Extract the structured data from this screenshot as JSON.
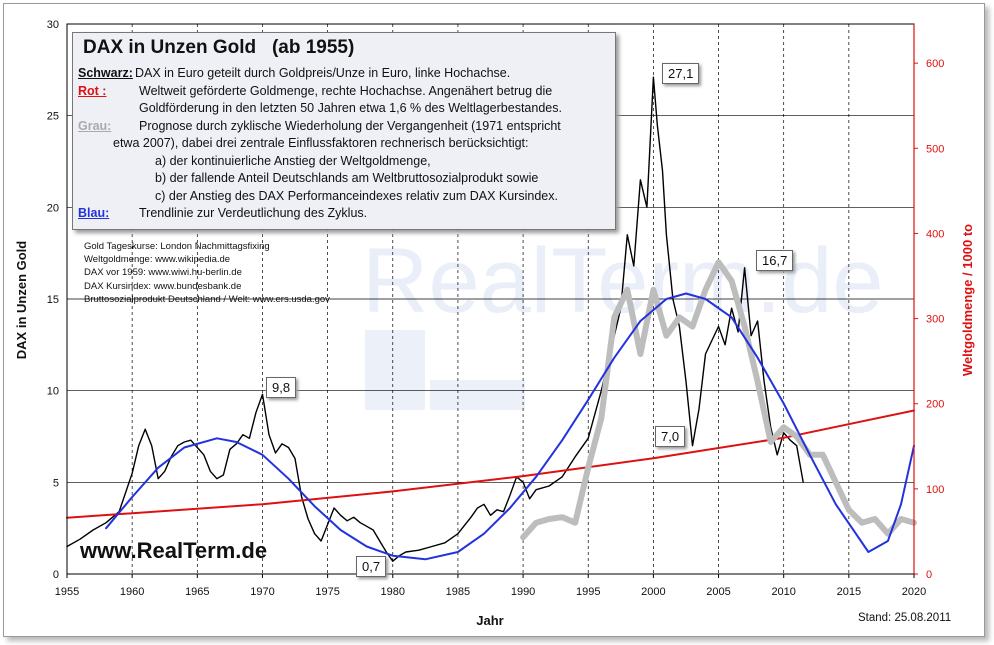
{
  "chart_data": {
    "type": "line",
    "title": "DAX in Unzen Gold   (ab 1955)",
    "xlabel": "Jahr",
    "ylabel": "DAX in Unzen Gold",
    "y2label": "Weltgoldmenge / 1000 to",
    "xlim": [
      1955,
      2020
    ],
    "ylim": [
      0,
      30
    ],
    "y2lim": [
      0,
      646
    ],
    "x_ticks": [
      "1955",
      "1960",
      "1965",
      "1970",
      "1975",
      "1980",
      "1985",
      "1990",
      "1995",
      "2000",
      "2005",
      "2010",
      "2015",
      "2020"
    ],
    "y_ticks": [
      "0",
      "5",
      "10",
      "15",
      "20",
      "25",
      "30"
    ],
    "y2_ticks": [
      "0",
      "100",
      "200",
      "300",
      "400",
      "500",
      "600"
    ],
    "grid": "horizontal gridlines; dashed vertical lines every 5 years",
    "legend": "text box top-left",
    "colors": {
      "black": "#000000",
      "red": "#dd1111",
      "grey": "#bdbdbd",
      "blue": "#2233dd"
    },
    "series": [
      {
        "name": "Schwarz",
        "color": "#000000",
        "x": [
          1955,
          1956,
          1957,
          1958,
          1959,
          1960,
          1960.5,
          1961,
          1961.5,
          1962,
          1962.5,
          1963,
          1963.5,
          1964,
          1964.5,
          1965,
          1965.5,
          1966,
          1966.5,
          1967,
          1967.5,
          1968,
          1968.5,
          1969,
          1969.5,
          1970,
          1970.5,
          1971,
          1971.5,
          1972,
          1972.5,
          1973,
          1973.5,
          1974,
          1974.5,
          1975,
          1975.5,
          1976,
          1976.5,
          1977,
          1977.5,
          1978,
          1978.5,
          1979,
          1979.5,
          1980,
          1980.5,
          1981,
          1982,
          1983,
          1984,
          1985,
          1986,
          1986.5,
          1987,
          1987.5,
          1988,
          1988.5,
          1989,
          1989.5,
          1990,
          1990.5,
          1991,
          1992,
          1993,
          1994,
          1995,
          1996,
          1997,
          1997.5,
          1998,
          1998.5,
          1999,
          1999.5,
          2000,
          2000.3,
          2000.7,
          2001,
          2001.5,
          2002,
          2002.5,
          2003,
          2003.5,
          2004,
          2005,
          2005.5,
          2006,
          2006.5,
          2007,
          2007.5,
          2008,
          2008.5,
          2009,
          2009.5,
          2010,
          2010.5,
          2011,
          2011.5
        ],
        "y": [
          1.5,
          1.9,
          2.4,
          2.8,
          3.4,
          5.5,
          7.0,
          7.9,
          7.0,
          5.2,
          5.6,
          6.4,
          7.0,
          7.2,
          7.3,
          6.9,
          6.5,
          5.6,
          5.2,
          5.4,
          6.8,
          7.1,
          7.6,
          7.4,
          8.8,
          9.8,
          7.6,
          6.6,
          7.1,
          6.9,
          6.3,
          4.2,
          3.0,
          2.2,
          1.8,
          2.7,
          3.6,
          3.2,
          2.9,
          3.1,
          2.8,
          2.6,
          2.4,
          1.8,
          1.2,
          0.7,
          1.0,
          1.2,
          1.3,
          1.5,
          1.7,
          2.2,
          3.1,
          3.6,
          3.8,
          3.2,
          3.5,
          3.4,
          4.3,
          5.3,
          5.0,
          4.1,
          4.6,
          4.8,
          5.3,
          6.4,
          7.4,
          10.0,
          13.0,
          14.5,
          18.5,
          16.8,
          21.5,
          20.0,
          27.1,
          24.5,
          22.0,
          18.5,
          15.0,
          13.5,
          10.5,
          7.0,
          9.0,
          12.0,
          13.5,
          12.5,
          14.5,
          13.2,
          16.7,
          13.0,
          13.8,
          10.5,
          8.0,
          6.5,
          7.7,
          7.3,
          7.0,
          5.0
        ]
      },
      {
        "name": "Rot",
        "color": "#dd1111",
        "axis": "right",
        "x": [
          1955,
          1970,
          1980,
          1990,
          2000,
          2010,
          2020
        ],
        "y": [
          66,
          82,
          97,
          115,
          136,
          160,
          192
        ]
      },
      {
        "name": "Grau",
        "color": "#bdbdbd",
        "x": [
          1990,
          1991,
          1992,
          1993,
          1994,
          1995,
          1996,
          1997,
          1998,
          1999,
          2000,
          2001,
          2002,
          2003,
          2004,
          2005,
          2006,
          2007,
          2008,
          2009,
          2010,
          2011,
          2012,
          2013,
          2014,
          2015,
          2016,
          2017,
          2018,
          2019,
          2020
        ],
        "y": [
          2.0,
          2.8,
          3.0,
          3.1,
          2.8,
          5.8,
          8.5,
          14.0,
          15.5,
          12.0,
          15.5,
          13.0,
          14.0,
          13.5,
          15.5,
          17.0,
          16.0,
          13.5,
          10.5,
          7.2,
          8.0,
          7.5,
          6.5,
          6.5,
          5.0,
          3.5,
          2.8,
          3.0,
          2.2,
          3.0,
          2.8
        ]
      },
      {
        "name": "Blau",
        "color": "#2233dd",
        "x": [
          1958,
          1960,
          1962,
          1964,
          1966.5,
          1968,
          1970,
          1972,
          1974,
          1976,
          1978,
          1980,
          1982.5,
          1985,
          1987,
          1989,
          1991,
          1993,
          1995,
          1997,
          1999,
          2001,
          2002.5,
          2004,
          2006,
          2008,
          2010,
          2012,
          2014,
          2016.5,
          2018,
          2019,
          2020
        ],
        "y": [
          2.5,
          4.2,
          5.8,
          6.9,
          7.4,
          7.2,
          6.5,
          5.2,
          3.7,
          2.4,
          1.5,
          1.0,
          0.8,
          1.2,
          2.2,
          3.6,
          5.3,
          7.3,
          9.5,
          11.8,
          13.8,
          15.0,
          15.3,
          15.0,
          14.0,
          11.8,
          9.3,
          6.5,
          3.8,
          1.2,
          1.8,
          3.8,
          7.0
        ]
      }
    ],
    "annotations": [
      "27,1",
      "16,7",
      "9,8",
      "7,0",
      "0,7"
    ]
  },
  "infobox": {
    "title": "DAX in Unzen Gold   (ab 1955)",
    "rows": [
      {
        "label": "Schwarz:",
        "lines": [
          "DAX in Euro geteilt durch Goldpreis/Unze in Euro, linke Hochachse."
        ]
      },
      {
        "label": "Rot :",
        "lines": [
          "Weltweit geförderte Goldmenge, rechte Hochachse. Angenähert betrug die",
          "Goldförderung in den letzten 50 Jahren etwa  1,6 %  des Weltlagerbestandes."
        ]
      },
      {
        "label": "Grau:",
        "lines": [
          "Prognose durch zyklische Wiederholung der Vergangenheit (1971 entspricht",
          "etwa 2007),  dabei drei zentrale Einflussfaktoren rechnerisch berücksichtigt:",
          "a) der kontinuierliche Anstieg der Weltgoldmenge,",
          "b) der fallende Anteil Deutschlands am Weltbruttosozialprodukt sowie",
          "c) der Anstieg des DAX Performanceindexes relativ zum DAX Kursindex."
        ]
      },
      {
        "label": "Blau:",
        "lines": [
          "Trendlinie zur Verdeutlichung des Zyklus."
        ]
      }
    ]
  },
  "sources": [
    "Gold Tageskurse: London Nachmittagsfixing",
    "Weltgoldmenge: www.wikipedia.de",
    "DAX vor 1959:  www.wiwi.hu-berlin.de",
    "DAX Kursindex: www.bundesbank.de",
    "Bruttosozialprodukt Deutschland / Welt: www.ers.usda.gov"
  ],
  "website": "www.RealTerm.de",
  "watermark": "RealTerm.de",
  "stand": "Stand:  25.08.2011"
}
